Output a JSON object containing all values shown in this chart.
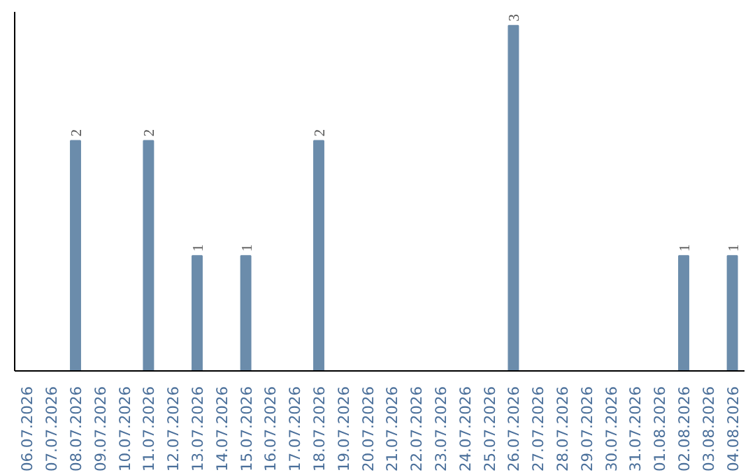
{
  "chart_data": {
    "type": "bar",
    "categories": [
      "06.07.2026",
      "07.07.2026",
      "08.07.2026",
      "09.07.2026",
      "10.07.2026",
      "11.07.2026",
      "12.07.2026",
      "13.07.2026",
      "14.07.2026",
      "15.07.2026",
      "16.07.2026",
      "17.07.2026",
      "18.07.2026",
      "19.07.2026",
      "20.07.2026",
      "21.07.2026",
      "22.07.2026",
      "23.07.2026",
      "24.07.2026",
      "25.07.2026",
      "26.07.2026",
      "27.07.2026",
      "28.07.2026",
      "29.07.2026",
      "30.07.2026",
      "31.07.2026",
      "01.08.2026",
      "02.08.2026",
      "03.08.2026",
      "04.08.2026"
    ],
    "values": [
      0,
      0,
      2,
      0,
      0,
      2,
      0,
      1,
      0,
      1,
      0,
      0,
      2,
      0,
      0,
      0,
      0,
      0,
      0,
      0,
      3,
      0,
      0,
      0,
      0,
      0,
      0,
      1,
      0,
      1
    ],
    "value_labels": [
      null,
      null,
      "2",
      null,
      null,
      "2",
      null,
      "1",
      null,
      "1",
      null,
      null,
      "2",
      null,
      null,
      null,
      null,
      null,
      null,
      null,
      "3",
      null,
      null,
      null,
      null,
      null,
      null,
      "1",
      null,
      "1"
    ],
    "color": "#6b8cab",
    "grid": false,
    "tick_labels": "x"
  }
}
